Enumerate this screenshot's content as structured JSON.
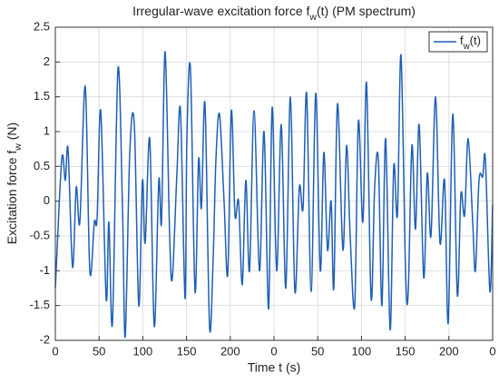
{
  "chart_data": {
    "type": "line",
    "title": "Irregular-wave excitation force f_w(t) (PM spectrum)",
    "x_label": "Time t (s)",
    "y_label": "Excitation force f_w (N)",
    "legend_position": "northeast",
    "grid": true,
    "xlim": [
      0,
      500
    ],
    "xticks": [
      0,
      50,
      100,
      150,
      200,
      {
        "value": 250,
        "label": "0"
      },
      {
        "value": 300,
        "label": "50"
      },
      {
        "value": 350,
        "label": "100"
      },
      {
        "value": 400,
        "label": "150"
      },
      {
        "value": 450,
        "label": "200"
      },
      {
        "value": 500,
        "label": "0"
      }
    ],
    "ylim": [
      -2,
      2.5
    ],
    "yticks": [
      -2,
      -1.5,
      -1,
      -0.5,
      0,
      0.5,
      1,
      1.5,
      2,
      2.5
    ],
    "x": [
      0,
      7.3,
      11.4,
      14.5,
      19.7,
      23.9,
      28,
      34.2,
      39.4,
      44.6,
      47.7,
      51.9,
      58.1,
      61.2,
      65.3,
      71.6,
      76.8,
      79.9,
      85.1,
      90.3,
      95.4,
      99.6,
      102.7,
      107.9,
      113.1,
      118.3,
      121.4,
      125.5,
      130.7,
      133.8,
      139,
      143.1,
      148.3,
      150.4,
      154.5,
      159.7,
      163.8,
      167,
      171.1,
      176.3,
      180.5,
      183.6,
      187.7,
      192.9,
      197.1,
      201.2,
      205.4,
      209.5,
      213.7,
      217.8,
      222,
      227.2,
      233.4,
      238.6,
      243.8,
      247.9,
      253.1,
      258.3,
      263.5,
      268.7,
      273.9,
      279,
      283.2,
      287.3,
      292.5,
      297.7,
      302.9,
      307,
      311.2,
      315.3,
      318.4,
      322.6,
      328.8,
      333,
      337.1,
      342.3,
      346.5,
      351.6,
      355.8,
      361,
      365.1,
      369.3,
      373.4,
      377.6,
      382.8,
      386.9,
      391.1,
      395.2,
      400.4,
      403.5,
      407.7,
      411.8,
      416,
      421.2,
      425.3,
      429.5,
      434.7,
      439.8,
      445,
      449.2,
      454.4,
      459.6,
      463.7,
      467.9,
      472,
      477.2,
      480.3,
      484.4,
      488.6,
      491.7,
      496.9,
      500
    ],
    "series": [
      {
        "name": "f_w(t)",
        "color": "#1f5fb4",
        "values": [
          -1.25,
          0.6,
          0.3,
          0.75,
          -0.95,
          0.2,
          -0.3,
          1.65,
          -1.0,
          -0.3,
          -0.25,
          1.3,
          -1.4,
          -0.3,
          -1.75,
          1.9,
          -0.1,
          -1.95,
          0.7,
          1.1,
          -1.5,
          0.3,
          -0.6,
          0.9,
          -1.8,
          0.3,
          -0.3,
          2.15,
          -0.5,
          -1.1,
          0.4,
          1.3,
          -1.4,
          0.9,
          1.9,
          -1.3,
          0.6,
          -0.1,
          1.4,
          -1.8,
          -0.8,
          0.6,
          1.25,
          0.0,
          -1.05,
          1.3,
          -0.2,
          0.0,
          -1.2,
          0.3,
          -1.0,
          1.3,
          -1.0,
          1.0,
          -1.55,
          1.35,
          -1.0,
          1.1,
          -1.25,
          1.5,
          -1.3,
          0.2,
          -0.1,
          1.55,
          -1.3,
          1.55,
          -1.0,
          0.7,
          -0.7,
          0.0,
          -1.25,
          1.4,
          -0.7,
          0.8,
          -0.5,
          -1.5,
          1.15,
          -0.3,
          1.7,
          -1.4,
          0.2,
          0.6,
          -1.5,
          0.9,
          -1.85,
          0.5,
          -0.2,
          2.1,
          -1.0,
          -1.3,
          0.8,
          -0.4,
          1.1,
          -1.1,
          0.4,
          -0.5,
          1.5,
          -0.6,
          0.3,
          -1.75,
          1.25,
          -1.35,
          0.1,
          -0.2,
          0.9,
          -0.3,
          -1.0,
          0.3,
          0.35,
          0.6,
          -1.3,
          -0.05
        ]
      }
    ]
  }
}
